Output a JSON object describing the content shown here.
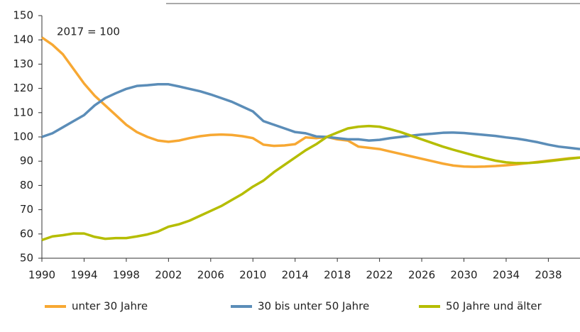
{
  "chart_data": {
    "type": "line",
    "annotation": "2017 = 100",
    "x": [
      1990,
      1991,
      1992,
      1993,
      1994,
      1995,
      1996,
      1997,
      1998,
      1999,
      2000,
      2001,
      2002,
      2003,
      2004,
      2005,
      2006,
      2007,
      2008,
      2009,
      2010,
      2011,
      2012,
      2013,
      2014,
      2015,
      2016,
      2017,
      2018,
      2019,
      2020,
      2021,
      2022,
      2023,
      2024,
      2025,
      2026,
      2027,
      2028,
      2029,
      2030,
      2031,
      2032,
      2033,
      2034,
      2035,
      2036,
      2037,
      2038,
      2039,
      2040,
      2041
    ],
    "series": [
      {
        "name": "unter 30 Jahre",
        "color": "#f7a833",
        "values": [
          141,
          138,
          134,
          128,
          122,
          117,
          113,
          109,
          105,
          102,
          100,
          98.5,
          98,
          98.5,
          99.5,
          100.3,
          100.8,
          101,
          100.8,
          100.3,
          99.5,
          96.8,
          96.3,
          96.5,
          97,
          99.8,
          99.5,
          100,
          99,
          98.5,
          96,
          95.5,
          95,
          94,
          93,
          92,
          91,
          90,
          89,
          88.2,
          87.8,
          87.7,
          87.8,
          88,
          88.3,
          88.7,
          89.2,
          89.7,
          90.2,
          90.7,
          91.2,
          91.5
        ]
      },
      {
        "name": "30 bis unter 50 Jahre",
        "color": "#5b8db8",
        "values": [
          100,
          101.5,
          104,
          106.5,
          109,
          113,
          116,
          118,
          119.8,
          121,
          121.3,
          121.7,
          121.7,
          120.8,
          119.8,
          118.8,
          117.5,
          116,
          114.5,
          112.5,
          110.5,
          106.5,
          105,
          103.5,
          102,
          101.5,
          100.2,
          100,
          99.5,
          99,
          99,
          98.5,
          98.8,
          99.5,
          100,
          100.5,
          101,
          101.3,
          101.7,
          101.8,
          101.6,
          101.2,
          100.8,
          100.4,
          99.8,
          99.3,
          98.6,
          97.8,
          96.8,
          96,
          95.5,
          95
        ]
      },
      {
        "name": "50 Jahre und älter",
        "color": "#b5bd00",
        "values": [
          57.5,
          59,
          59.5,
          60.2,
          60.2,
          58.8,
          58,
          58.3,
          58.3,
          59,
          59.8,
          61,
          63,
          64,
          65.5,
          67.5,
          69.5,
          71.5,
          74,
          76.5,
          79.5,
          82,
          85.5,
          88.5,
          91.5,
          94.5,
          97,
          100,
          101.8,
          103.5,
          104.2,
          104.5,
          104.2,
          103.2,
          102,
          100.5,
          99,
          97.5,
          96,
          94.7,
          93.5,
          92.3,
          91.2,
          90.2,
          89.5,
          89.2,
          89.2,
          89.5,
          90,
          90.5,
          91,
          91.5
        ]
      }
    ],
    "xlim": [
      1990,
      2041
    ],
    "xticks": [
      1990,
      1994,
      1998,
      2002,
      2006,
      2010,
      2014,
      2018,
      2022,
      2026,
      2030,
      2034,
      2038
    ],
    "ylim": [
      50,
      150
    ],
    "yticks": [
      50,
      60,
      70,
      80,
      90,
      100,
      110,
      120,
      130,
      140,
      150
    ],
    "grid": false
  }
}
